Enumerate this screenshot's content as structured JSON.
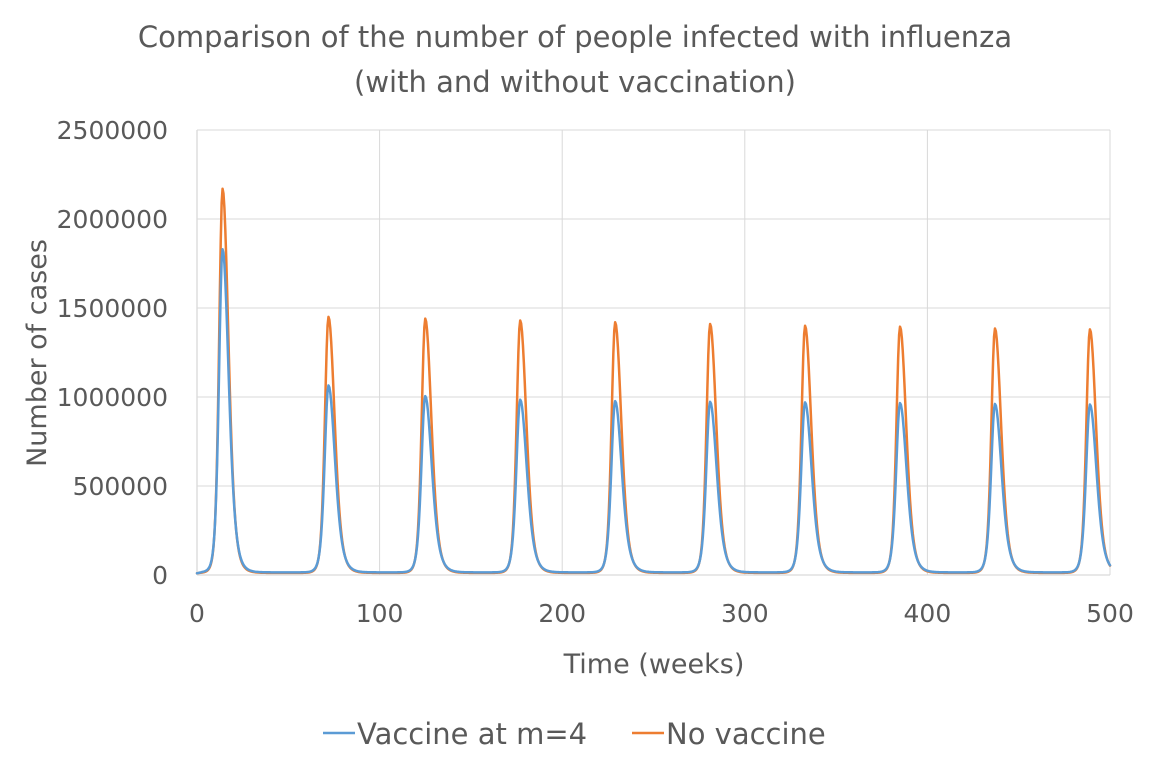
{
  "chart_data": {
    "type": "line",
    "title": "Comparison of the number of people infected with influenza",
    "subtitle": "(with and without vaccination)",
    "xlabel": "Time (weeks)",
    "ylabel": "Number  of  cases",
    "xlim": [
      0,
      500
    ],
    "ylim": [
      0,
      2500000
    ],
    "x_ticks": [
      "0",
      "100",
      "200",
      "300",
      "400",
      "500"
    ],
    "y_ticks": [
      "0",
      "500000",
      "1000000",
      "1500000",
      "2000000",
      "2500000"
    ],
    "grid": true,
    "legend_position": "bottom",
    "series": [
      {
        "name": "Vaccine at m=4",
        "color": "#5b9bd5",
        "peaks": [
          {
            "week": 14,
            "cases": 1830000
          },
          {
            "week": 72,
            "cases": 1065000
          },
          {
            "week": 125,
            "cases": 1005000
          },
          {
            "week": 177,
            "cases": 985000
          },
          {
            "week": 229,
            "cases": 977000
          },
          {
            "week": 281,
            "cases": 973000
          },
          {
            "week": 333,
            "cases": 970000
          },
          {
            "week": 385,
            "cases": 966000
          },
          {
            "week": 437,
            "cases": 961000
          },
          {
            "week": 489,
            "cases": 958000
          }
        ],
        "troughs": [
          {
            "week": 0,
            "cases": 10000
          },
          {
            "week": 50,
            "cases": 15000
          },
          {
            "week": 102,
            "cases": 15000
          },
          {
            "week": 154,
            "cases": 15000
          },
          {
            "week": 206,
            "cases": 15000
          },
          {
            "week": 258,
            "cases": 15000
          },
          {
            "week": 310,
            "cases": 15000
          },
          {
            "week": 362,
            "cases": 15000
          },
          {
            "week": 414,
            "cases": 15000
          },
          {
            "week": 466,
            "cases": 15000
          },
          {
            "week": 500,
            "cases": 230000
          }
        ]
      },
      {
        "name": "No vaccine",
        "color": "#ed7d31",
        "peaks": [
          {
            "week": 14,
            "cases": 2170000
          },
          {
            "week": 72,
            "cases": 1450000
          },
          {
            "week": 125,
            "cases": 1440000
          },
          {
            "week": 177,
            "cases": 1430000
          },
          {
            "week": 229,
            "cases": 1420000
          },
          {
            "week": 281,
            "cases": 1410000
          },
          {
            "week": 333,
            "cases": 1400000
          },
          {
            "week": 385,
            "cases": 1395000
          },
          {
            "week": 437,
            "cases": 1385000
          },
          {
            "week": 489,
            "cases": 1380000
          }
        ],
        "troughs": [
          {
            "week": 0,
            "cases": 10000
          },
          {
            "week": 50,
            "cases": 12000
          },
          {
            "week": 102,
            "cases": 12000
          },
          {
            "week": 154,
            "cases": 12000
          },
          {
            "week": 206,
            "cases": 12000
          },
          {
            "week": 258,
            "cases": 12000
          },
          {
            "week": 310,
            "cases": 12000
          },
          {
            "week": 362,
            "cases": 12000
          },
          {
            "week": 414,
            "cases": 12000
          },
          {
            "week": 466,
            "cases": 12000
          },
          {
            "week": 500,
            "cases": 225000
          }
        ]
      }
    ]
  }
}
